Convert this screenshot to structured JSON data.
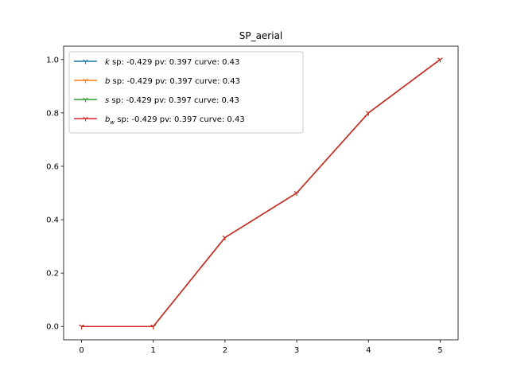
{
  "chart_data": {
    "type": "line",
    "title": "SP_aerial",
    "xlabel": "",
    "ylabel": "",
    "x": [
      0,
      1,
      2,
      3,
      4,
      5
    ],
    "xlim": [
      -0.25,
      5.25
    ],
    "ylim": [
      -0.05,
      1.05
    ],
    "xticks": [
      "0",
      "1",
      "2",
      "3",
      "4",
      "5"
    ],
    "yticks": [
      "0.0",
      "0.2",
      "0.4",
      "0.6",
      "0.8",
      "1.0"
    ],
    "grid": false,
    "legend_position": "top-left",
    "series": [
      {
        "symbol": "k",
        "subscript": "",
        "stats": " sp: -0.429 pv: 0.397 curve: 0.43",
        "color": "#1f77b4",
        "values": [
          0,
          0,
          0.333,
          0.5,
          0.8,
          1.0
        ]
      },
      {
        "symbol": "b",
        "subscript": "",
        "stats": " sp: -0.429 pv: 0.397 curve: 0.43",
        "color": "#ff7f0e",
        "values": [
          0,
          0,
          0.333,
          0.5,
          0.8,
          1.0
        ]
      },
      {
        "symbol": "s",
        "subscript": "",
        "stats": " sp: -0.429 pv: 0.397 curve: 0.43",
        "color": "#2ca02c",
        "values": [
          0,
          0,
          0.333,
          0.5,
          0.8,
          1.0
        ]
      },
      {
        "symbol": "b",
        "subscript": "w",
        "stats": " sp: -0.429 pv: 0.397 curve: 0.43",
        "color": "#d62728",
        "values": [
          0,
          0,
          0.333,
          0.5,
          0.8,
          1.0
        ]
      }
    ]
  }
}
